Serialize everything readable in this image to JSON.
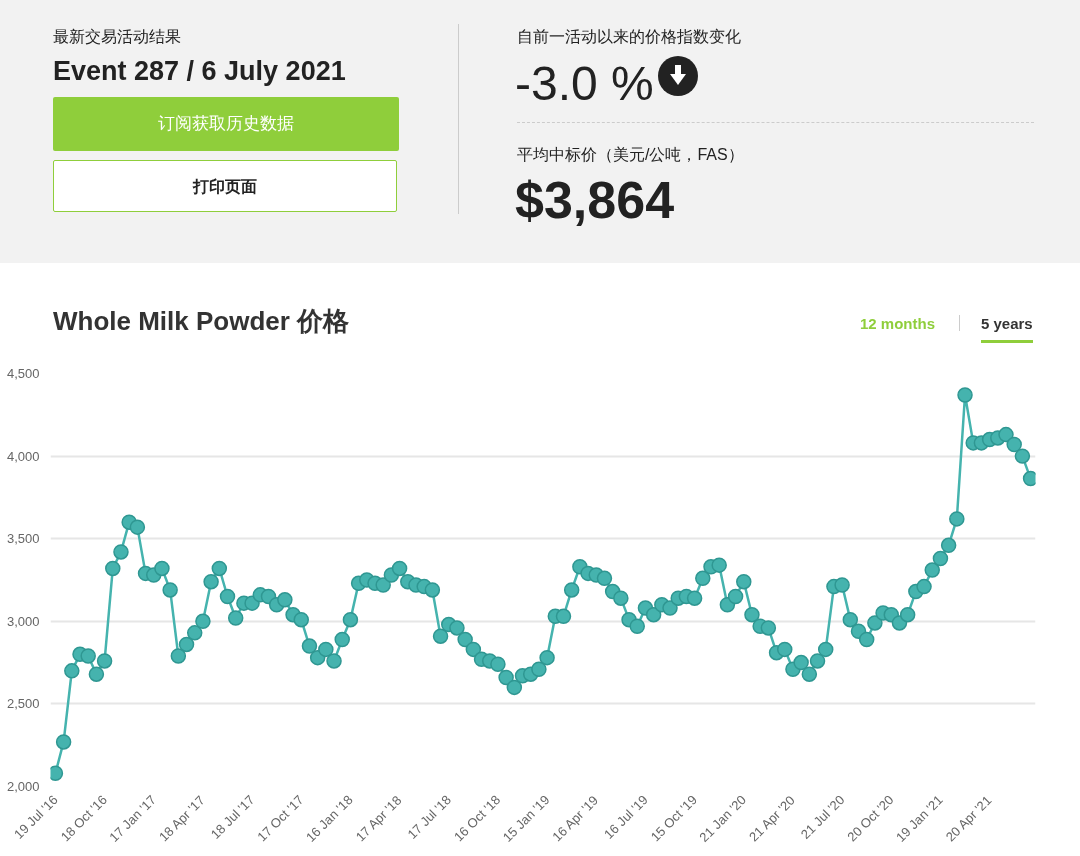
{
  "chart_data": {
    "type": "line",
    "title": "Whole Milk Powder 价格",
    "annotations": [
      "最新交易活动结果",
      "Event 287 / 6 July 2021",
      "订阅获取历史数据",
      "打印页面",
      "自前一活动以来的价格指数变化",
      "-3.0 %",
      "平均中标价（美元/公吨，FAS）",
      "$3,864",
      "12 months",
      "5 years"
    ],
    "categories": [
      "19 Jul '16",
      null,
      null,
      null,
      null,
      null,
      "18 Oct '16",
      null,
      null,
      null,
      null,
      null,
      "17 Jan '17",
      null,
      null,
      null,
      null,
      null,
      "18 Apr '17",
      null,
      null,
      null,
      null,
      null,
      "18 Jul '17",
      null,
      null,
      null,
      null,
      null,
      "17 Oct '17",
      null,
      null,
      null,
      null,
      null,
      "16 Jan '18",
      null,
      null,
      null,
      null,
      null,
      "17 Apr '18",
      null,
      null,
      null,
      null,
      null,
      "17 Jul '18",
      null,
      null,
      null,
      null,
      null,
      "16 Oct '18",
      null,
      null,
      null,
      null,
      null,
      "15 Jan '19",
      null,
      null,
      null,
      null,
      null,
      "16 Apr '19",
      null,
      null,
      null,
      null,
      null,
      "16 Jul '19",
      null,
      null,
      null,
      null,
      null,
      "15 Oct '19",
      null,
      null,
      null,
      null,
      null,
      "21 Jan '20",
      null,
      null,
      null,
      null,
      null,
      "21 Apr '20",
      null,
      null,
      null,
      null,
      null,
      "21 Jul '20",
      null,
      null,
      null,
      null,
      null,
      "20 Oct '20",
      null,
      null,
      null,
      null,
      null,
      "19 Jan '21",
      null,
      null,
      null,
      null,
      null,
      "20 Apr '21",
      null,
      null,
      null,
      null,
      null
    ],
    "series": [
      {
        "color": "#45b3ae",
        "values": [
          2080,
          2270,
          2700,
          2800,
          2790,
          2680,
          2760,
          3320,
          3420,
          3600,
          3570,
          3290,
          3280,
          3320,
          3190,
          2790,
          2860,
          2930,
          3000,
          3240,
          3320,
          3150,
          3020,
          3110,
          3110,
          3160,
          3150,
          3100,
          3130,
          3040,
          3010,
          2850,
          2780,
          2830,
          2760,
          2890,
          3010,
          3230,
          3250,
          3230,
          3220,
          3280,
          3320,
          3240,
          3220,
          3210,
          3190,
          2910,
          2980,
          2960,
          2890,
          2830,
          2770,
          2760,
          2740,
          2660,
          2600,
          2670,
          2680,
          2710,
          2780,
          3030,
          3030,
          3190,
          3330,
          3290,
          3280,
          3260,
          3180,
          3140,
          3010,
          2970,
          3080,
          3040,
          3100,
          3080,
          3140,
          3150,
          3140,
          3260,
          3330,
          3340,
          3100,
          3150,
          3240,
          3040,
          2970,
          2960,
          2810,
          2830,
          2710,
          2750,
          2680,
          2760,
          2830,
          3210,
          3220,
          3010,
          2940,
          2890,
          2990,
          3050,
          3040,
          2990,
          3040,
          3180,
          3210,
          3310,
          3380,
          3460,
          3620,
          4370,
          4080,
          4080,
          4100,
          4110,
          4130,
          4070,
          4000,
          3864
        ]
      }
    ],
    "ylim": [
      2000,
      4500
    ],
    "yticks": [
      {
        "value": 2000,
        "label": "2,000"
      },
      {
        "value": 2500,
        "label": "2,500"
      },
      {
        "value": 3000,
        "label": "3,000"
      },
      {
        "value": 3500,
        "label": "3,500"
      },
      {
        "value": 4000,
        "label": "4,000"
      },
      {
        "value": 4500,
        "label": "4,500"
      }
    ],
    "grid": "y",
    "marker": "circle",
    "line_style": "solid"
  }
}
